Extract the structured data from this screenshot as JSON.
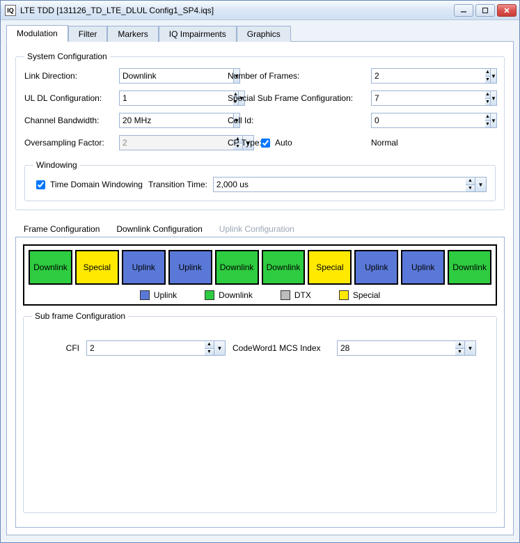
{
  "window": {
    "title": "LTE TDD [131126_TD_LTE_DLUL Config1_SP4.iqs]",
    "app_icon": "IQ"
  },
  "tabs": {
    "items": [
      "Modulation",
      "Filter",
      "Markers",
      "IQ Impairments",
      "Graphics"
    ],
    "active_index": 0
  },
  "system": {
    "legend": "System Configuration",
    "link_direction_label": "Link Direction:",
    "link_direction": "Downlink",
    "num_frames_label": "Number of Frames:",
    "num_frames": "2",
    "uldl_label": "UL DL Configuration:",
    "uldl": "1",
    "ssf_label": "Special Sub Frame Configuration:",
    "ssf": "7",
    "bw_label": "Channel Bandwidth:",
    "bw": "20 MHz",
    "cellid_label": "Cell Id:",
    "cellid": "0",
    "ovs_label": "Oversampling Factor:",
    "ovs": "2",
    "auto_label": "Auto",
    "auto_checked": true,
    "cp_label": "CP Type:",
    "cp_value": "Normal"
  },
  "windowing": {
    "legend": "Windowing",
    "tdw_label": "Time Domain Windowing",
    "tdw_checked": true,
    "tt_label": "Transition Time:",
    "tt_value": "2,000 us"
  },
  "subtabs": {
    "items": [
      "Frame Configuration",
      "Downlink Configuration",
      "Uplink Configuration"
    ],
    "active_index": 0,
    "disabled_index": 2
  },
  "frame": {
    "dl_color": "#2ecc40",
    "ul_color": "#5a78d8",
    "sp_color": "#ffe900",
    "dtx_color": "#bdbdbd",
    "slots": [
      "Downlink",
      "Special",
      "Uplink",
      "Uplink",
      "Downlink",
      "Downlink",
      "Special",
      "Uplink",
      "Uplink",
      "Downlink"
    ],
    "legend": {
      "items": [
        "Uplink",
        "Downlink",
        "DTX",
        "Special"
      ]
    }
  },
  "subframe": {
    "legend": "Sub frame Configuration",
    "cfi_label": "CFI",
    "cfi": "2",
    "mcs_label": "CodeWord1 MCS Index",
    "mcs": "28"
  }
}
